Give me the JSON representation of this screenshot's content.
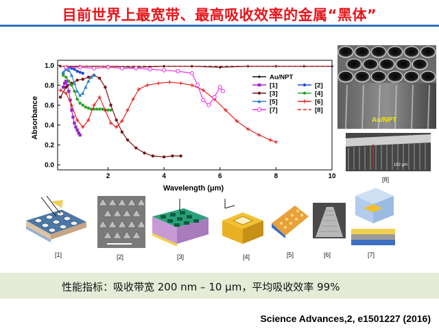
{
  "slide": {
    "title": "目前世界上最宽带、最高吸收效率的金属“黑体”",
    "summary": "性能指标：吸收带宽 200 nm – 10 μm，平均吸收效率 99%",
    "citation": "Science Advances,2, e1501227 (2016)"
  },
  "images": {
    "au_npt_label": "Au/NPT",
    "side_label": "[8]",
    "scale_text": "182 μm",
    "panels": [
      "[1]",
      "[2]",
      "[3]",
      "[4]",
      "[5]",
      "[6]",
      "[7]"
    ]
  },
  "chart_data": {
    "type": "line",
    "xlabel": "Wavelength (μm)",
    "ylabel": "Absorbance",
    "xlim": [
      0.2,
      10
    ],
    "ylim": [
      -0.05,
      1.05
    ],
    "xticks": [
      "2",
      "4",
      "6",
      "8",
      "10"
    ],
    "yticks": [
      "0.0",
      "0.2",
      "0.4",
      "0.6",
      "0.8",
      "1.0"
    ],
    "legend_position": "top-right",
    "series": [
      {
        "name": "Au/NPT",
        "color": "#111111",
        "marker": "diamond",
        "dash": false,
        "x": [
          0.3,
          1,
          2,
          3,
          4,
          5,
          6,
          7,
          8,
          9,
          10
        ],
        "y": [
          0.99,
          0.99,
          0.99,
          0.98,
          0.99,
          0.99,
          0.98,
          0.99,
          0.99,
          0.99,
          0.99
        ]
      },
      {
        "name": "[1]",
        "color": "#9b23c8",
        "marker": "square",
        "dash": false,
        "x": [
          0.4,
          0.45,
          0.5,
          0.55,
          0.6,
          0.65,
          0.7,
          0.75,
          0.8,
          0.85,
          0.9,
          0.95,
          1.0
        ],
        "y": [
          0.78,
          0.82,
          0.84,
          0.8,
          0.74,
          0.65,
          0.55,
          0.48,
          0.42,
          0.38,
          0.35,
          0.32,
          0.3
        ]
      },
      {
        "name": "[2]",
        "color": "#1c4ad6",
        "marker": "circle",
        "dash": false,
        "x": [
          0.4,
          0.5,
          0.6,
          0.7,
          0.8,
          0.9,
          1.0,
          1.1
        ],
        "y": [
          0.92,
          0.96,
          0.98,
          0.97,
          0.96,
          0.94,
          0.93,
          0.92
        ]
      },
      {
        "name": "[3]",
        "color": "#7a1515",
        "marker": "circle",
        "dash": false,
        "x": [
          0.3,
          0.5,
          0.7,
          0.9,
          1.1,
          1.3,
          1.5,
          1.7,
          1.9,
          2.1,
          2.3,
          2.5,
          2.7,
          3.0,
          3.3,
          3.6,
          4.0,
          4.3,
          4.6
        ],
        "y": [
          0.68,
          0.78,
          0.82,
          0.85,
          0.86,
          0.88,
          0.9,
          0.87,
          0.78,
          0.6,
          0.45,
          0.33,
          0.25,
          0.17,
          0.12,
          0.09,
          0.08,
          0.09,
          0.09
        ]
      },
      {
        "name": "[4]",
        "color": "#2aa02a",
        "marker": "circle",
        "dash": false,
        "x": [
          0.4,
          0.5,
          0.6,
          0.7,
          0.8,
          0.9,
          1.0,
          1.1,
          1.2,
          1.3,
          1.4,
          1.5,
          1.6,
          1.7,
          1.8,
          1.9,
          2.0,
          2.1
        ],
        "y": [
          0.9,
          0.88,
          0.84,
          0.8,
          0.74,
          0.66,
          0.62,
          0.6,
          0.58,
          0.57,
          0.56,
          0.56,
          0.56,
          0.56,
          0.56,
          0.55,
          0.55,
          0.55
        ]
      },
      {
        "name": "[5]",
        "color": "#2b7fd6",
        "marker": "triangle",
        "dash": false,
        "x": [
          0.4,
          0.5,
          0.6,
          0.7,
          0.8,
          0.9,
          1.0,
          1.1,
          1.2,
          1.3,
          1.4,
          1.5
        ],
        "y": [
          0.93,
          0.96,
          0.95,
          0.9,
          0.82,
          0.74,
          0.7,
          0.72,
          0.78,
          0.84,
          0.88,
          0.9
        ]
      },
      {
        "name": "[6]",
        "color": "#e82020",
        "marker": "plus",
        "dash": false,
        "x": [
          0.3,
          0.5,
          0.7,
          0.9,
          1.1,
          1.3,
          1.5,
          1.7,
          1.9,
          2.1,
          2.3,
          2.5,
          2.7,
          2.9,
          3.1,
          3.4,
          3.8,
          4.2,
          4.6,
          5.0,
          5.4,
          5.8,
          6.2,
          6.6,
          7.0,
          7.4,
          7.8,
          8.0
        ],
        "y": [
          0.75,
          0.72,
          0.6,
          0.45,
          0.38,
          0.45,
          0.6,
          0.68,
          0.55,
          0.42,
          0.38,
          0.44,
          0.55,
          0.66,
          0.76,
          0.8,
          0.82,
          0.83,
          0.82,
          0.8,
          0.75,
          0.66,
          0.55,
          0.44,
          0.36,
          0.3,
          0.25,
          0.23
        ]
      },
      {
        "name": "[7]",
        "color": "#ee2cee",
        "marker": "circle-open",
        "dash": false,
        "x": [
          0.5,
          1.0,
          1.5,
          2.0,
          2.5,
          3.0,
          3.5,
          4.0,
          4.5,
          5.0,
          5.2,
          5.4,
          5.6,
          5.8,
          6.0,
          6.1
        ],
        "y": [
          0.98,
          0.98,
          0.97,
          0.98,
          0.97,
          0.97,
          0.96,
          0.95,
          0.94,
          0.92,
          0.8,
          0.65,
          0.6,
          0.68,
          0.78,
          0.74
        ]
      },
      {
        "name": "[8]",
        "color": "#e82020",
        "marker": "none",
        "dash": true,
        "x": [
          0.3,
          1,
          2,
          3,
          4,
          5,
          6,
          7,
          8,
          9,
          10
        ],
        "y": [
          0.99,
          0.99,
          0.99,
          0.99,
          0.99,
          0.99,
          0.99,
          0.99,
          0.99,
          0.99,
          0.99
        ]
      }
    ]
  }
}
